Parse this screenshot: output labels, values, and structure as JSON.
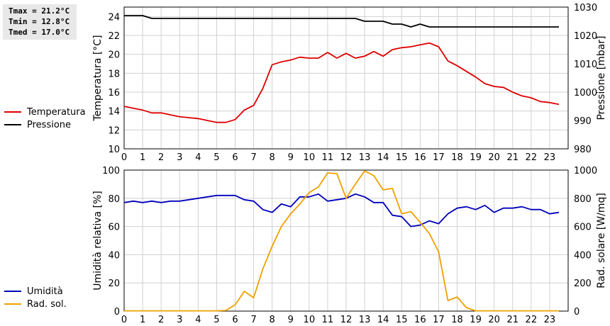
{
  "stats": {
    "tmax": "Tmax = 21.2°C",
    "tmin": "Tmin = 12.8°C",
    "tmed": "Tmed = 17.0°C"
  },
  "colors": {
    "temperature": "#dd0000",
    "pressure": "#000000",
    "humidity": "#0000bb",
    "solar": "#f0a000",
    "grid": "#d0d0d0"
  },
  "chart_data": [
    {
      "type": "line",
      "xlabel": "",
      "ylabel": "Temperatura [°C]",
      "y2label": "Pressione [mbar]",
      "xlim": [
        0,
        24
      ],
      "ylim": [
        10,
        25
      ],
      "y2lim": [
        980,
        1030
      ],
      "x_ticks": [
        "0",
        "1",
        "2",
        "3",
        "4",
        "5",
        "6",
        "7",
        "8",
        "9",
        "10",
        "11",
        "12",
        "13",
        "14",
        "15",
        "16",
        "17",
        "18",
        "19",
        "20",
        "21",
        "22",
        "23"
      ],
      "y_ticks": [
        "10",
        "12",
        "14",
        "16",
        "18",
        "20",
        "22",
        "24"
      ],
      "y2_ticks": [
        "980",
        "990",
        "1000",
        "1010",
        "1020",
        "1030"
      ],
      "grid": true,
      "legend_position": "left",
      "series": [
        {
          "name": "Temperatura",
          "axis": "left",
          "color": "#dd0000",
          "x": [
            0,
            0.5,
            1,
            1.5,
            2,
            2.5,
            3,
            3.5,
            4,
            4.5,
            5,
            5.5,
            6,
            6.5,
            7,
            7.5,
            8,
            8.5,
            9,
            9.5,
            10,
            10.5,
            11,
            11.5,
            12,
            12.5,
            13,
            13.5,
            14,
            14.5,
            15,
            15.5,
            16,
            16.5,
            17,
            17.5,
            18,
            18.5,
            19,
            19.5,
            20,
            20.5,
            21,
            21.5,
            22,
            22.5,
            23,
            23.5
          ],
          "values": [
            14.5,
            14.3,
            14.1,
            13.8,
            13.8,
            13.6,
            13.4,
            13.3,
            13.2,
            13.0,
            12.8,
            12.8,
            13.1,
            14.1,
            14.6,
            16.4,
            18.9,
            19.2,
            19.4,
            19.7,
            19.6,
            19.6,
            20.2,
            19.6,
            20.1,
            19.6,
            19.8,
            20.3,
            19.8,
            20.5,
            20.7,
            20.8,
            21.0,
            21.2,
            20.8,
            19.3,
            18.8,
            18.2,
            17.6,
            16.9,
            16.6,
            16.5,
            16.0,
            15.6,
            15.4,
            15.0,
            14.9,
            14.7
          ]
        },
        {
          "name": "Pressione",
          "axis": "right",
          "color": "#000000",
          "x": [
            0,
            0.5,
            1,
            1.5,
            2,
            2.5,
            3,
            3.5,
            4,
            4.5,
            5,
            5.5,
            6,
            6.5,
            7,
            7.5,
            8,
            8.5,
            9,
            9.5,
            10,
            10.5,
            11,
            11.5,
            12,
            12.5,
            13,
            13.5,
            14,
            14.5,
            15,
            15.5,
            16,
            16.5,
            17,
            17.5,
            18,
            18.5,
            19,
            19.5,
            20,
            20.5,
            21,
            21.5,
            22,
            22.5,
            23,
            23.5
          ],
          "values": [
            1027,
            1027,
            1027,
            1026,
            1026,
            1026,
            1026,
            1026,
            1026,
            1026,
            1026,
            1026,
            1026,
            1026,
            1026,
            1026,
            1026,
            1026,
            1026,
            1026,
            1026,
            1026,
            1026,
            1026,
            1026,
            1026,
            1025,
            1025,
            1025,
            1024,
            1024,
            1023,
            1024,
            1023,
            1023,
            1023,
            1023,
            1023,
            1023,
            1023,
            1023,
            1023,
            1023,
            1023,
            1023,
            1023,
            1023,
            1023
          ]
        }
      ]
    },
    {
      "type": "line",
      "xlabel": "",
      "ylabel": "Umidità relativa [%]",
      "y2label": "Rad. solare [W/mq]",
      "xlim": [
        0,
        24
      ],
      "ylim": [
        0,
        100
      ],
      "y2lim": [
        0,
        1000
      ],
      "x_ticks": [
        "0",
        "1",
        "2",
        "3",
        "4",
        "5",
        "6",
        "7",
        "8",
        "9",
        "10",
        "11",
        "12",
        "13",
        "14",
        "15",
        "16",
        "17",
        "18",
        "19",
        "20",
        "21",
        "22",
        "23"
      ],
      "y_ticks": [
        "0",
        "20",
        "40",
        "60",
        "80",
        "100"
      ],
      "y2_ticks": [
        "0",
        "200",
        "400",
        "600",
        "800",
        "1000"
      ],
      "grid": true,
      "legend_position": "left",
      "series": [
        {
          "name": "Umidità",
          "axis": "left",
          "color": "#0000bb",
          "x": [
            0,
            0.5,
            1,
            1.5,
            2,
            2.5,
            3,
            3.5,
            4,
            4.5,
            5,
            5.5,
            6,
            6.5,
            7,
            7.5,
            8,
            8.5,
            9,
            9.5,
            10,
            10.5,
            11,
            11.5,
            12,
            12.5,
            13,
            13.5,
            14,
            14.5,
            15,
            15.5,
            16,
            16.5,
            17,
            17.5,
            18,
            18.5,
            19,
            19.5,
            20,
            20.5,
            21,
            21.5,
            22,
            22.5,
            23,
            23.5
          ],
          "values": [
            77,
            78,
            77,
            78,
            77,
            78,
            78,
            79,
            80,
            81,
            82,
            82,
            82,
            79,
            78,
            72,
            70,
            76,
            74,
            81,
            81,
            83,
            78,
            79,
            80,
            83,
            81,
            77,
            77,
            68,
            67,
            60,
            61,
            64,
            62,
            69,
            73,
            74,
            72,
            75,
            70,
            73,
            73,
            74,
            72,
            72,
            69,
            70
          ]
        },
        {
          "name": "Rad. sol.",
          "axis": "right",
          "color": "#f0a000",
          "x": [
            0,
            0.5,
            1,
            1.5,
            2,
            2.5,
            3,
            3.5,
            4,
            4.5,
            5,
            5.5,
            6,
            6.5,
            7,
            7.5,
            8,
            8.5,
            9,
            9.5,
            10,
            10.5,
            11,
            11.5,
            12,
            12.5,
            13,
            13.5,
            14,
            14.5,
            15,
            15.5,
            16,
            16.5,
            17,
            17.5,
            18,
            18.5,
            19,
            19.5,
            20,
            20.5,
            21,
            21.5,
            22,
            22.5,
            23,
            23.5
          ],
          "values": [
            2,
            2,
            2,
            2,
            2,
            2,
            2,
            2,
            2,
            2,
            2,
            5,
            45,
            140,
            95,
            300,
            460,
            600,
            690,
            760,
            840,
            880,
            980,
            975,
            800,
            900,
            995,
            960,
            860,
            870,
            690,
            705,
            630,
            550,
            420,
            75,
            100,
            25,
            2,
            2,
            2,
            2,
            2,
            2,
            2,
            2,
            2,
            2
          ]
        }
      ]
    }
  ]
}
